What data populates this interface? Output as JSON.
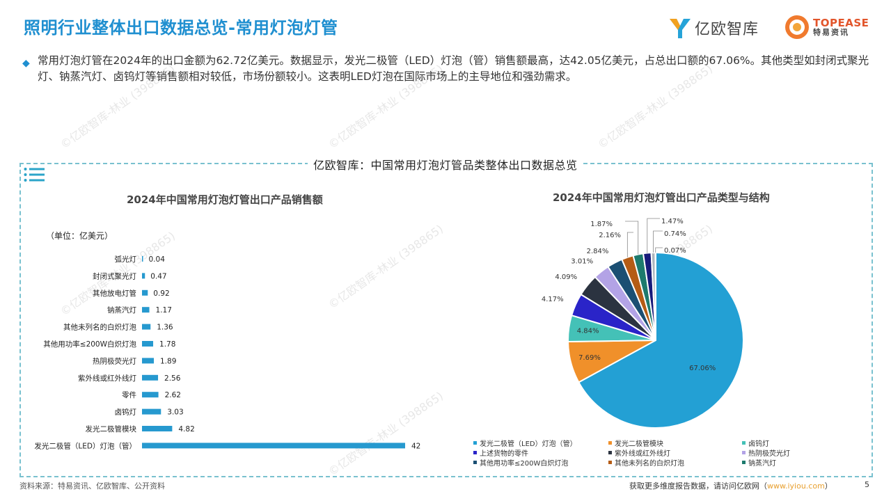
{
  "page_title": "照明行业整体出口数据总览-常用灯泡灯管",
  "logos": {
    "iyiou": "亿欧智库",
    "topease_en": "TOPEASE",
    "topease_cn": "特易资讯"
  },
  "summary": "常用灯泡灯管在2024年的出口金额为62.72亿美元。数据显示，发光二极管（LED）灯泡（管）销售额最高，达42.05亿美元，占总出口额的67.06%。其他类型如封闭式聚光灯、钠蒸汽灯、卤钨灯等销售额相对较低，市场份额较小。这表明LED灯泡在国际市场上的主导地位和强劲需求。",
  "panel_title": "亿欧智库：中国常用灯泡灯管品类整体出口数据总览",
  "source": "资料来源：特易资讯、亿欧智库、公开资料",
  "footer": {
    "text": "获取更多维度报告数据，请访问亿欧网（",
    "link": "www.iyiou.com",
    "close": "）"
  },
  "page_number": "5",
  "watermark": "©亿欧智库-林业 (398865)",
  "colors": {
    "accent": "#1f8fd0",
    "bar": "#2699cf"
  },
  "chart_data": [
    {
      "type": "bar",
      "orientation": "horizontal",
      "title": "2024年中国常用灯泡灯管出口产品销售额",
      "unit": "（单位：亿美元）",
      "categories": [
        "弧光灯",
        "封闭式聚光灯",
        "其他放电灯管",
        "钠蒸汽灯",
        "其他未列名的白炽灯泡",
        "其他用功率≤200W白炽灯泡",
        "热阴极荧光灯",
        "紫外线或红外线灯",
        "零件",
        "卤钨灯",
        "发光二极管模块",
        "发光二极管（LED）灯泡（管）"
      ],
      "values": [
        0.04,
        0.47,
        0.92,
        1.17,
        1.36,
        1.78,
        1.89,
        2.56,
        2.62,
        3.03,
        4.82,
        42
      ],
      "value_labels": [
        "0.04",
        "0.47",
        "0.92",
        "1.17",
        "1.36",
        "1.78",
        "1.89",
        "2.56",
        "2.62",
        "3.03",
        "4.82",
        "42"
      ]
    },
    {
      "type": "pie",
      "title": "2024年中国常用灯泡灯管出口产品类型与结构",
      "labels": [
        "发光二极管（LED）灯泡（管）",
        "发光二极管模块",
        "卤钨灯",
        "上述货物的零件",
        "紫外线或红外线灯",
        "热阴极荧光灯",
        "其他用功率≤200W白炽灯泡",
        "其他未列名的白炽灯泡",
        "钠蒸汽灯",
        "其他放电灯管",
        "封闭式聚光灯",
        "弧光灯"
      ],
      "values": [
        67.06,
        7.69,
        4.84,
        4.17,
        4.09,
        3.01,
        2.84,
        2.16,
        1.87,
        1.47,
        0.74,
        0.07
      ],
      "value_labels": [
        "67.06%",
        "7.69%",
        "4.84%",
        "4.17%",
        "4.09%",
        "3.01%",
        "2.84%",
        "2.16%",
        "1.87%",
        "1.47%",
        "0.74%",
        "0.07%"
      ],
      "colors": [
        "#23a0d4",
        "#f0902a",
        "#44c1b7",
        "#2a24c8",
        "#2b3340",
        "#b3a3e6",
        "#1b4f73",
        "#b55c15",
        "#1d7a6d",
        "#171b7a",
        "#aeb5bd",
        "#9a8fd6"
      ],
      "legend": [
        {
          "label": "发光二极管（LED）灯泡（管）",
          "color": "#23a0d4"
        },
        {
          "label": "发光二极管模块",
          "color": "#f0902a"
        },
        {
          "label": "卤钨灯",
          "color": "#44c1b7"
        },
        {
          "label": "上述货物的零件",
          "color": "#2a24c8"
        },
        {
          "label": "紫外线或红外线灯",
          "color": "#2b3340"
        },
        {
          "label": "热阴极荧光灯",
          "color": "#b3a3e6"
        },
        {
          "label": "其他用功率≤200W白炽灯泡",
          "color": "#1b4f73"
        },
        {
          "label": "其他未列名的白炽灯泡",
          "color": "#b55c15"
        },
        {
          "label": "钠蒸汽灯",
          "color": "#1d7a6d"
        }
      ]
    }
  ]
}
